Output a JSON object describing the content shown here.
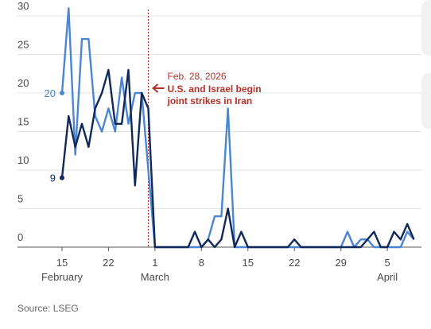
{
  "chart_data": {
    "type": "line",
    "x": [
      "02-15",
      "02-16",
      "02-17",
      "02-18",
      "02-19",
      "02-20",
      "02-21",
      "02-22",
      "02-23",
      "02-24",
      "02-25",
      "02-26",
      "02-27",
      "02-28",
      "03-01",
      "03-02",
      "03-03",
      "03-04",
      "03-05",
      "03-06",
      "03-07",
      "03-08",
      "03-09",
      "03-10",
      "03-11",
      "03-12",
      "03-13",
      "03-14",
      "03-15",
      "03-16",
      "03-17",
      "03-18",
      "03-19",
      "03-20",
      "03-21",
      "03-22",
      "03-23",
      "03-24",
      "03-25",
      "03-26",
      "03-27",
      "03-28",
      "03-29",
      "03-30",
      "03-31",
      "04-01",
      "04-02",
      "04-03",
      "04-04",
      "04-05",
      "04-06",
      "04-07",
      "04-08",
      "04-09"
    ],
    "series": [
      {
        "color": "#4a86d4",
        "values": [
          20,
          31,
          12,
          27,
          27,
          17,
          15,
          18,
          15,
          22,
          16,
          20,
          20,
          10,
          0,
          0,
          0,
          0,
          0,
          0,
          0,
          0,
          1,
          4,
          4,
          18,
          0,
          0,
          0,
          0,
          0,
          0,
          0,
          0,
          0,
          0,
          0,
          0,
          0,
          0,
          0,
          0,
          0,
          2,
          0,
          1,
          1,
          0,
          0,
          0,
          0,
          0,
          2,
          1
        ]
      },
      {
        "color": "#10295a",
        "values": [
          9,
          17,
          13,
          16,
          13,
          18,
          20,
          23,
          16,
          16,
          23,
          8,
          20,
          18,
          0,
          0,
          0,
          0,
          0,
          0,
          2,
          0,
          1,
          0,
          1,
          5,
          0,
          2,
          0,
          0,
          0,
          0,
          0,
          0,
          0,
          1,
          0,
          0,
          0,
          0,
          0,
          0,
          0,
          0,
          0,
          0,
          1,
          2,
          0,
          0,
          2,
          1,
          3,
          1
        ]
      }
    ],
    "xlim": [
      "02-08",
      "04-12"
    ],
    "xticks": [
      {
        "value": "02-15",
        "label": "15"
      },
      {
        "value": "02-22",
        "label": "22"
      },
      {
        "value": "03-01",
        "label": "1"
      },
      {
        "value": "03-08",
        "label": "8"
      },
      {
        "value": "03-15",
        "label": "15"
      },
      {
        "value": "03-22",
        "label": "22"
      },
      {
        "value": "03-29",
        "label": "29"
      },
      {
        "value": "04-05",
        "label": "5"
      }
    ],
    "x_month_labels": [
      {
        "value": "02-15",
        "label": "February"
      },
      {
        "value": "03-01",
        "label": "March"
      },
      {
        "value": "04-05",
        "label": "April"
      }
    ],
    "ylim": [
      0,
      31
    ],
    "yticks": [
      0,
      5,
      10,
      15,
      20,
      25,
      30
    ],
    "grid": true,
    "annotation": {
      "x": "02-28",
      "date": "Feb. 28, 2026",
      "text": [
        "U.S. and Israel begin",
        "joint strikes in Iran"
      ],
      "color": "#b5322a"
    },
    "source": "Source: LSEG"
  }
}
